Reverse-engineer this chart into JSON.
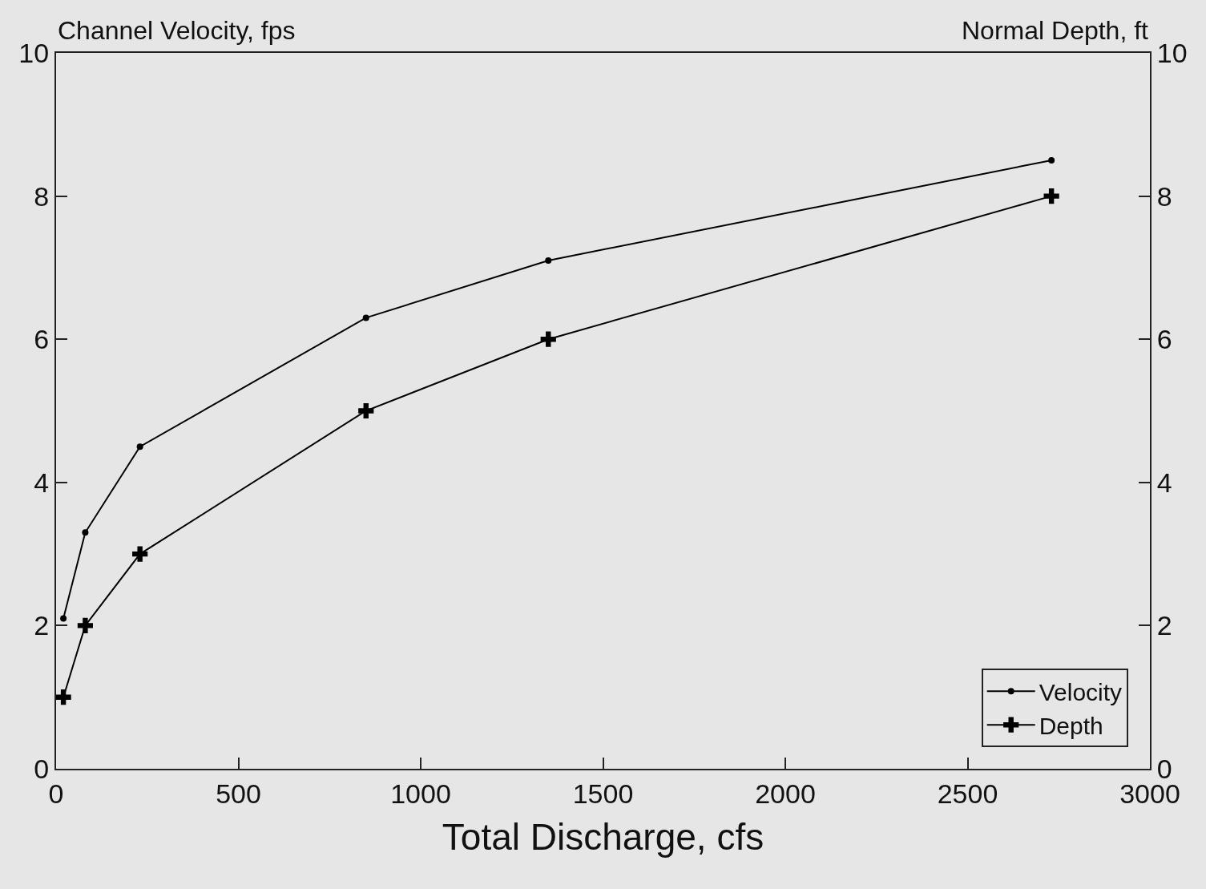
{
  "chart_data": {
    "type": "line",
    "xlabel": "Total Discharge, cfs",
    "ylabel": "Channel Velocity, fps",
    "y2label": "Normal Depth, ft",
    "series": [
      {
        "name": "Velocity",
        "color": "#000000",
        "marker": "circle",
        "x": [
          20,
          80,
          230,
          850,
          1350,
          2730
        ],
        "values": [
          2.1,
          3.3,
          4.5,
          6.3,
          7.1,
          8.5
        ]
      },
      {
        "name": "Depth",
        "color": "#000000",
        "marker": "cross",
        "axis": "y2",
        "x": [
          20,
          80,
          230,
          850,
          1350,
          2730
        ],
        "values": [
          1.0,
          2.0,
          3.0,
          5.0,
          6.0,
          8.0
        ]
      }
    ],
    "xlim": [
      0,
      3000
    ],
    "xticks": [
      0,
      500,
      1000,
      1500,
      2000,
      2500,
      3000
    ],
    "ylim": [
      0,
      10
    ],
    "yticks": [
      0,
      2,
      4,
      6,
      8,
      10
    ],
    "y2lim": [
      0,
      10
    ],
    "y2ticks": [
      0,
      2,
      4,
      6,
      8,
      10
    ],
    "grid": false,
    "legend": "bottom right",
    "line_style": "solid"
  }
}
